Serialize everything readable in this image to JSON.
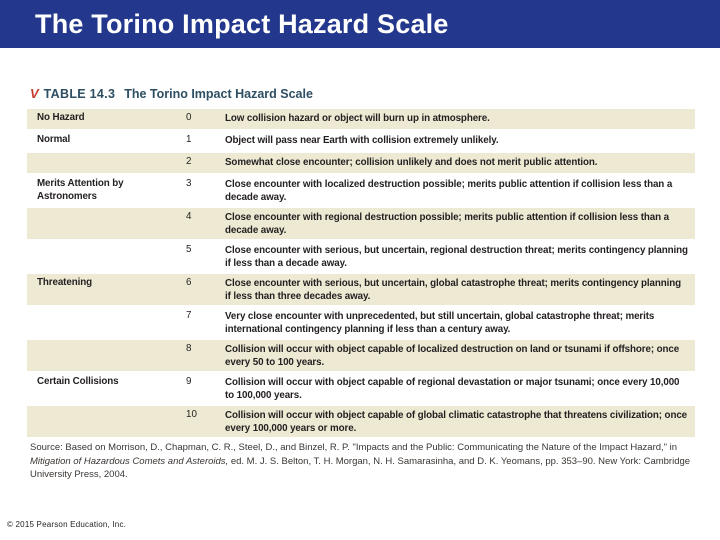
{
  "slide": {
    "title": "The Torino Impact Hazard Scale"
  },
  "table": {
    "marker_glyph": "V",
    "label": "TABLE 14.3",
    "title": "The Torino Impact Hazard Scale",
    "rows": [
      {
        "category": "No Hazard",
        "level": "0",
        "description": "Low collision hazard or object will burn up in atmosphere."
      },
      {
        "category": "Normal",
        "level": "1",
        "description": "Object will pass near Earth with collision extremely unlikely."
      },
      {
        "category": "",
        "level": "2",
        "description": "Somewhat close encounter; collision unlikely and does not merit public attention."
      },
      {
        "category": "Merits Attention by Astronomers",
        "level": "3",
        "description": "Close encounter with localized destruction possible; merits public attention if collision less than a decade away."
      },
      {
        "category": "",
        "level": "4",
        "description": "Close encounter with regional destruction possible; merits public attention if collision less than a decade away."
      },
      {
        "category": "",
        "level": "5",
        "description": "Close encounter with serious, but uncertain, regional destruction threat; merits contingency planning if less than a decade away."
      },
      {
        "category": "Threatening",
        "level": "6",
        "description": "Close encounter with serious, but uncertain, global catastrophe threat; merits contingency planning if less than three decades away."
      },
      {
        "category": "",
        "level": "7",
        "description": "Very close encounter with unprecedented, but still uncertain, global catastrophe threat; merits international contingency planning if less than a century away."
      },
      {
        "category": "",
        "level": "8",
        "description": "Collision will occur with object capable of localized destruction on land or tsunami if offshore; once every 50 to 100 years."
      },
      {
        "category": "Certain Collisions",
        "level": "9",
        "description": "Collision will occur with object capable of regional devastation or major tsunami; once every 10,000 to 100,000 years."
      },
      {
        "category": "",
        "level": "10",
        "description": "Collision will occur with object capable of global climatic catastrophe that threatens civilization; once every 100,000 years or more."
      }
    ]
  },
  "source": {
    "pre": "Source: Based on Morrison, D., Chapman, C. R., Steel, D., and Binzel, R. P. \"Impacts and the Public: Communicating the Nature of the Impact Hazard,\" in ",
    "book": "Mitigation of Hazardous Comets and Asteroids,",
    "post": " ed. M. J. S. Belton, T. H. Morgan, N. H. Samarasinha, and D. K. Yeomans, pp. 353–90. New York: Cambridge University Press, 2004."
  },
  "footer": {
    "copyright": "© 2015 Pearson Education, Inc."
  },
  "colors": {
    "header_bg": "#23388C",
    "row_stripe": "#EDE9D3",
    "caption_text": "#2D4E63",
    "marker_red": "#C43B2E",
    "body_text": "#231F20"
  }
}
